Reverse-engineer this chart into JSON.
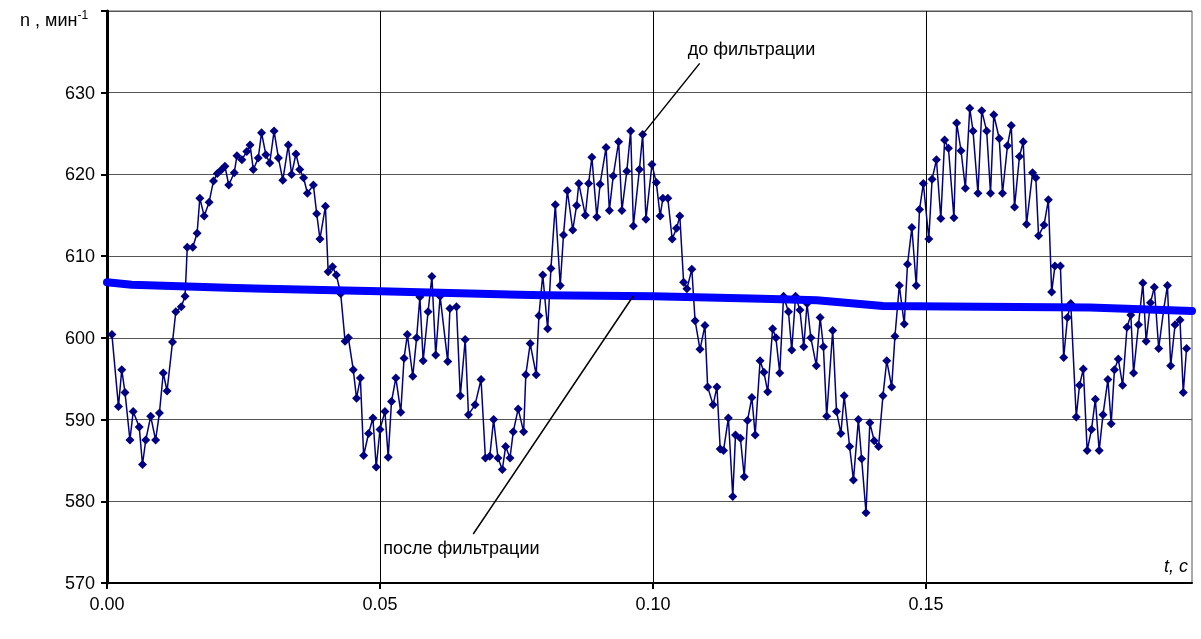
{
  "chart_data": {
    "type": "line",
    "xlabel": "t, c",
    "ylabel": "n , мин$^{-1}$",
    "xlim": [
      0,
      0.1987
    ],
    "ylim": [
      570,
      640
    ],
    "xticks": [
      {
        "value": 0,
        "label": "0.00"
      },
      {
        "value": 0.05,
        "label": "0.05"
      },
      {
        "value": 0.1,
        "label": "0.10"
      },
      {
        "value": 0.15,
        "label": "0.15"
      }
    ],
    "yticks": [
      570,
      580,
      590,
      600,
      610,
      620,
      630,
      {
        "value": 640,
        "label": null
      }
    ],
    "grid": true,
    "legend": false,
    "line_style": "solid",
    "series": [
      {
        "name": "до фильтрации",
        "color": "#000080",
        "marker": "diamond",
        "x": [
          0.0009,
          0.0021,
          0.0027,
          0.0033,
          0.0042,
          0.0048,
          0.0059,
          0.0065,
          0.0071,
          0.008,
          0.0089,
          0.0096,
          0.0103,
          0.011,
          0.012,
          0.0126,
          0.0136,
          0.0143,
          0.0147,
          0.0157,
          0.0165,
          0.017,
          0.0178,
          0.0187,
          0.0195,
          0.0202,
          0.021,
          0.0216,
          0.0223,
          0.0233,
          0.0238,
          0.0247,
          0.0256,
          0.0262,
          0.0268,
          0.0277,
          0.0283,
          0.0291,
          0.0298,
          0.0306,
          0.0314,
          0.0322,
          0.0332,
          0.0338,
          0.0346,
          0.0353,
          0.036,
          0.0367,
          0.0378,
          0.0384,
          0.039,
          0.04,
          0.0405,
          0.0413,
          0.042,
          0.0428,
          0.0436,
          0.0442,
          0.0451,
          0.0457,
          0.0464,
          0.047,
          0.0479,
          0.0487,
          0.0493,
          0.05,
          0.0509,
          0.0515,
          0.0521,
          0.0529,
          0.0538,
          0.0544,
          0.055,
          0.056,
          0.0567,
          0.0573,
          0.0579,
          0.0588,
          0.0595,
          0.0602,
          0.061,
          0.0624,
          0.0628,
          0.064,
          0.0647,
          0.0656,
          0.0662,
          0.0674,
          0.0685,
          0.0693,
          0.0701,
          0.0708,
          0.0716,
          0.0724,
          0.073,
          0.0738,
          0.0744,
          0.0753,
          0.0763,
          0.0767,
          0.0775,
          0.0786,
          0.0791,
          0.0798,
          0.0807,
          0.0813,
          0.0821,
          0.083,
          0.0836,
          0.0843,
          0.0853,
          0.086,
          0.0864,
          0.0876,
          0.0882,
          0.0888,
          0.0897,
          0.0903,
          0.0914,
          0.092,
          0.0927,
          0.0937,
          0.0943,
          0.0952,
          0.0959,
          0.0964,
          0.0975,
          0.0981,
          0.0987,
          0.0998,
          0.1006,
          0.1013,
          0.1018,
          0.1027,
          0.1035,
          0.1043,
          0.1049,
          0.1056,
          0.1062,
          0.1071,
          0.1077,
          0.1086,
          0.1095,
          0.11,
          0.111,
          0.1117,
          0.1123,
          0.1129,
          0.1138,
          0.1146,
          0.1151,
          0.116,
          0.1167,
          0.1173,
          0.1181,
          0.1187,
          0.1196,
          0.1203,
          0.121,
          0.1219,
          0.1225,
          0.1232,
          0.1239,
          0.1248,
          0.1254,
          0.1261,
          0.1269,
          0.1276,
          0.1282,
          0.1289,
          0.1299,
          0.1306,
          0.1312,
          0.1318,
          0.1329,
          0.1336,
          0.1344,
          0.135,
          0.136,
          0.1367,
          0.1376,
          0.1382,
          0.139,
          0.1397,
          0.1405,
          0.1413,
          0.1421,
          0.1428,
          0.1437,
          0.1443,
          0.1451,
          0.146,
          0.1466,
          0.1474,
          0.1482,
          0.1488,
          0.1495,
          0.1505,
          0.1511,
          0.1519,
          0.1527,
          0.1534,
          0.1541,
          0.1551,
          0.1556,
          0.1564,
          0.1572,
          0.158,
          0.1586,
          0.1595,
          0.1602,
          0.1611,
          0.1618,
          0.1624,
          0.1634,
          0.164,
          0.1649,
          0.1656,
          0.1662,
          0.1671,
          0.1678,
          0.1684,
          0.1695,
          0.1701,
          0.1706,
          0.1716,
          0.1724,
          0.173,
          0.1736,
          0.1746,
          0.1752,
          0.1759,
          0.1765,
          0.1775,
          0.1781,
          0.1788,
          0.1795,
          0.1803,
          0.181,
          0.1817,
          0.1824,
          0.1833,
          0.1839,
          0.1845,
          0.1852,
          0.186,
          0.1868,
          0.1875,
          0.188,
          0.1889,
          0.1897,
          0.1903,
          0.1911,
          0.1918,
          0.1926,
          0.1935,
          0.1942,
          0.1948,
          0.1956,
          0.1965,
          0.1971,
          0.1977
        ],
        "values": [
          600.4,
          591.6,
          596.1,
          593.3,
          587.5,
          591.0,
          589.1,
          584.5,
          587.5,
          590.4,
          587.5,
          590.8,
          595.7,
          593.5,
          599.5,
          603.2,
          603.8,
          605.1,
          611.1,
          611.1,
          612.8,
          617.1,
          614.9,
          616.6,
          619.2,
          620.1,
          620.6,
          621.0,
          618.7,
          620.2,
          622.3,
          621.8,
          622.8,
          623.6,
          620.6,
          622.0,
          625.1,
          622.4,
          621.4,
          625.3,
          622.0,
          619.3,
          623.6,
          620.0,
          622.5,
          620.6,
          619.6,
          617.7,
          618.7,
          615.2,
          612.1,
          616.1,
          608.1,
          608.7,
          607.7,
          605.4,
          599.6,
          600.0,
          596.1,
          592.6,
          595.1,
          585.6,
          588.3,
          590.2,
          584.2,
          588.8,
          591.0,
          585.4,
          592.2,
          595.1,
          590.9,
          597.5,
          600.4,
          595.3,
          600.0,
          605.0,
          597.2,
          603.2,
          607.5,
          597.9,
          605.1,
          597.1,
          603.6,
          603.8,
          592.9,
          599.8,
          590.6,
          591.8,
          594.9,
          585.3,
          585.5,
          590.0,
          585.3,
          583.9,
          586.7,
          585.3,
          588.5,
          591.3,
          588.5,
          595.5,
          599.3,
          595.5,
          602.7,
          607.7,
          601.1,
          608.5,
          616.3,
          606.4,
          612.6,
          618.0,
          613.2,
          616.2,
          618.9,
          615.0,
          618.9,
          622.1,
          614.8,
          618.8,
          623.3,
          615.6,
          619.8,
          624.0,
          615.6,
          620.4,
          625.3,
          613.7,
          620.6,
          624.9,
          614.5,
          621.2,
          619.0,
          614.9,
          617.1,
          617.1,
          612.1,
          613.4,
          614.9,
          606.8,
          606.0,
          608.4,
          602.1,
          598.6,
          601.5,
          594.0,
          591.8,
          594.0,
          586.4,
          586.2,
          590.2,
          580.6,
          588.1,
          587.7,
          583.0,
          589.9,
          592.7,
          588.1,
          597.2,
          595.8,
          593.4,
          601.1,
          600.0,
          595.7,
          605.1,
          603.2,
          598.5,
          605.1,
          603.4,
          598.9,
          604.2,
          600.0,
          596.6,
          602.5,
          598.9,
          590.4,
          600.9,
          591.0,
          588.3,
          592.9,
          586.7,
          582.6,
          590.0,
          585.2,
          578.6,
          589.6,
          587.4,
          586.7,
          592.9,
          597.2,
          594.0,
          600.2,
          606.4,
          601.7,
          609.0,
          613.5,
          606.4,
          615.7,
          618.9,
          612.1,
          619.4,
          621.8,
          614.6,
          624.2,
          623.2,
          614.7,
          626.3,
          622.9,
          618.3,
          628.1,
          625.3,
          617.7,
          627.8,
          625.3,
          617.7,
          627.3,
          624.4,
          617.7,
          623.5,
          626.0,
          616.0,
          622.2,
          624.0,
          613.9,
          620.2,
          619.6,
          612.5,
          613.8,
          616.9,
          605.6,
          608.8,
          608.8,
          597.6,
          602.5,
          604.2,
          590.3,
          594.2,
          596.2,
          586.2,
          588.8,
          592.5,
          586.2,
          590.6,
          594.9,
          589.5,
          596.1,
          597.4,
          594.2,
          601.3,
          602.8,
          595.7,
          601.6,
          606.7,
          599.6,
          604.3,
          606.2,
          598.7,
          603.4,
          606.4,
          596.6,
          601.6,
          602.2,
          593.3,
          598.7
        ]
      },
      {
        "name": "после фильтрации",
        "color": "#0000ff",
        "marker": "none",
        "x": [
          0,
          0.0045,
          0.0235,
          0.05,
          0.08,
          0.1,
          0.12,
          0.13,
          0.1421,
          0.16,
          0.18,
          0.1987
        ],
        "values": [
          606.8,
          606.5,
          606.1,
          605.7,
          605.2,
          605.1,
          604.8,
          604.6,
          603.9,
          603.8,
          603.7,
          603.3
        ]
      }
    ]
  }
}
